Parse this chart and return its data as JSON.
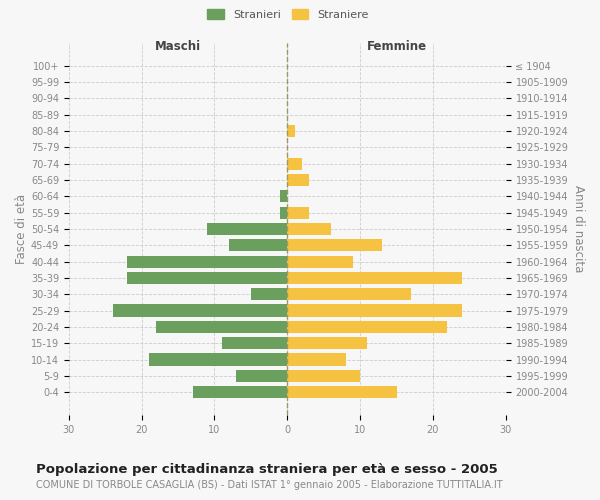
{
  "age_groups": [
    "100+",
    "95-99",
    "90-94",
    "85-89",
    "80-84",
    "75-79",
    "70-74",
    "65-69",
    "60-64",
    "55-59",
    "50-54",
    "45-49",
    "40-44",
    "35-39",
    "30-34",
    "25-29",
    "20-24",
    "15-19",
    "10-14",
    "5-9",
    "0-4"
  ],
  "birth_years": [
    "≤ 1904",
    "1905-1909",
    "1910-1914",
    "1915-1919",
    "1920-1924",
    "1925-1929",
    "1930-1934",
    "1935-1939",
    "1940-1944",
    "1945-1949",
    "1950-1954",
    "1955-1959",
    "1960-1964",
    "1965-1969",
    "1970-1974",
    "1975-1979",
    "1980-1984",
    "1985-1989",
    "1990-1994",
    "1995-1999",
    "2000-2004"
  ],
  "males": [
    0,
    0,
    0,
    0,
    0,
    0,
    0,
    0,
    1,
    1,
    11,
    8,
    22,
    22,
    5,
    24,
    18,
    9,
    19,
    7,
    13
  ],
  "females": [
    0,
    0,
    0,
    0,
    1,
    0,
    2,
    3,
    0,
    3,
    6,
    13,
    9,
    24,
    17,
    24,
    22,
    11,
    8,
    10,
    15
  ],
  "male_color": "#6a9f5e",
  "female_color": "#f5c241",
  "background_color": "#f7f7f7",
  "grid_color": "#cccccc",
  "title": "Popolazione per cittadinanza straniera per età e sesso - 2005",
  "subtitle": "COMUNE DI TORBOLE CASAGLIA (BS) - Dati ISTAT 1° gennaio 2005 - Elaborazione TUTTITALIA.IT",
  "ylabel_left": "Fasce di età",
  "ylabel_right": "Anni di nascita",
  "xlabel_left": "Maschi",
  "xlabel_right": "Femmine",
  "legend_male": "Stranieri",
  "legend_female": "Straniere",
  "xlim": 30,
  "title_fontsize": 9.5,
  "subtitle_fontsize": 7,
  "axis_label_fontsize": 8.5,
  "tick_fontsize": 7
}
